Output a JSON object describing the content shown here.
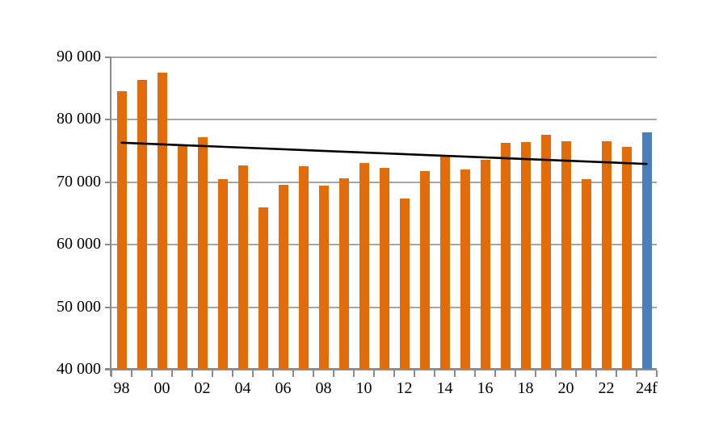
{
  "chart_data": {
    "type": "bar",
    "title": "",
    "xlabel": "",
    "ylabel": "",
    "categories": [
      "98",
      "99",
      "00",
      "01",
      "02",
      "03",
      "04",
      "05",
      "06",
      "07",
      "08",
      "09",
      "10",
      "11",
      "12",
      "13",
      "14",
      "15",
      "16",
      "17",
      "18",
      "19",
      "20",
      "21",
      "22",
      "23",
      "24f"
    ],
    "values": [
      84400,
      86300,
      87400,
      75800,
      77100,
      70400,
      72600,
      65800,
      69400,
      72400,
      69300,
      70500,
      73000,
      72200,
      67300,
      71600,
      74100,
      71900,
      73400,
      76200,
      76300,
      77500,
      76500,
      70300,
      76500,
      75500,
      77900
    ],
    "forecast_index": 26,
    "xtick_labels": [
      "98",
      "00",
      "02",
      "04",
      "06",
      "08",
      "10",
      "12",
      "14",
      "16",
      "18",
      "20",
      "22",
      "24f"
    ],
    "xtick_every": 2,
    "ytick_labels": [
      "90 000",
      "80 000",
      "70 000",
      "60 000",
      "50 000",
      "40 000"
    ],
    "ylim": [
      40000,
      90000
    ],
    "ytick_step": 10000,
    "grid": true,
    "legend": "none",
    "trendline": {
      "start_value": 76200,
      "end_value": 72800,
      "color": "#000000"
    },
    "colors": {
      "bar_default": "#E36C0A",
      "bar_forecast": "#4C7EBE",
      "gridline": "#A6A6A6",
      "axis": "#8C8C8C",
      "text": "#000000"
    }
  }
}
